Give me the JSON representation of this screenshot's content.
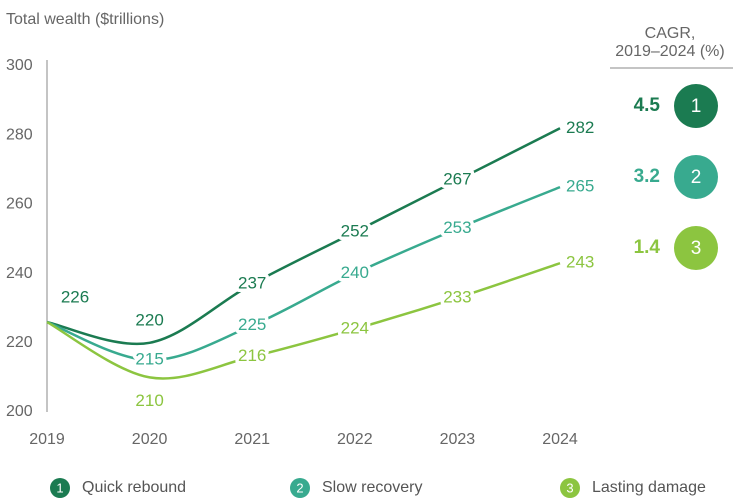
{
  "chart_data": {
    "type": "line",
    "y_axis_label": "Total wealth ($trillions)",
    "cagr_header": [
      "CAGR,",
      "2019–2024 (%)"
    ],
    "x": [
      2019,
      2020,
      2021,
      2022,
      2023,
      2024
    ],
    "xlim": [
      2019,
      2024
    ],
    "xticks": [
      2019,
      2020,
      2021,
      2022,
      2023,
      2024
    ],
    "ylim": [
      200,
      300
    ],
    "yticks": [
      200,
      220,
      240,
      260,
      280,
      300
    ],
    "grid": false,
    "series": [
      {
        "name": "Quick rebound",
        "number": "1",
        "color": "#1b7b51",
        "cagr": 4.5,
        "values": [
          226,
          220,
          237,
          252,
          267,
          282
        ]
      },
      {
        "name": "Slow recovery",
        "number": "2",
        "color": "#38aa8f",
        "cagr": 3.2,
        "values": [
          226,
          215,
          225,
          240,
          253,
          265
        ]
      },
      {
        "name": "Lasting damage",
        "number": "3",
        "color": "#8cc540",
        "cagr": 1.4,
        "values": [
          226,
          210,
          216,
          224,
          233,
          243
        ]
      }
    ]
  }
}
